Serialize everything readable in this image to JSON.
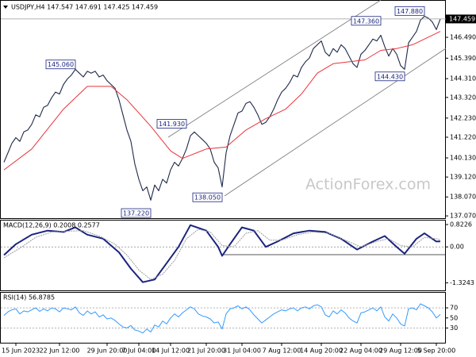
{
  "watermark": "ActionForex.com",
  "chart_data": [
    {
      "type": "line",
      "title": "USDJPY,H4 147.547 147.691 147.425 147.459",
      "xlim": [
        0,
        110
      ],
      "ylim": [
        136.95,
        148.25
      ],
      "yticks": [
        {
          "value": 146.49,
          "label": "146.490"
        },
        {
          "value": 145.39,
          "label": "145.390"
        },
        {
          "value": 144.31,
          "label": "144.310"
        },
        {
          "value": 143.32,
          "label": "143.320"
        },
        {
          "value": 142.23,
          "label": "142.230"
        },
        {
          "value": 141.22,
          "label": "141.220"
        },
        {
          "value": 140.13,
          "label": "140.130"
        },
        {
          "value": 139.12,
          "label": "139.120"
        },
        {
          "value": 138.07,
          "label": "138.070"
        },
        {
          "value": 137.07,
          "label": "137.070"
        }
      ],
      "last_price": 147.459,
      "series": [
        {
          "color": "#1e2a4a",
          "values": [
            139.9,
            140.4,
            140.9,
            141.2,
            141.0,
            141.5,
            141.6,
            141.9,
            142.4,
            142.3,
            142.8,
            142.9,
            143.3,
            143.6,
            143.5,
            144.0,
            144.3,
            144.5,
            144.8,
            144.6,
            144.4,
            144.7,
            144.6,
            144.7,
            144.4,
            144.5,
            144.2,
            144.0,
            143.8,
            143.2,
            142.4,
            141.6,
            141.0,
            139.8,
            139.0,
            138.4,
            138.6,
            137.9,
            138.7,
            138.4,
            139.0,
            138.8,
            139.5,
            139.9,
            139.7,
            140.1,
            140.6,
            141.3,
            141.5,
            141.3,
            141.1,
            140.9,
            140.6,
            139.9,
            139.6,
            138.6,
            140.4,
            141.3,
            141.9,
            142.5,
            142.6,
            143.0,
            143.1,
            142.8,
            142.4,
            141.9,
            142.0,
            142.3,
            142.7,
            143.2,
            143.6,
            143.8,
            144.1,
            144.5,
            144.4,
            144.9,
            145.2,
            145.4,
            145.9,
            146.1,
            146.3,
            145.7,
            145.5,
            145.9,
            145.7,
            146.1,
            145.9,
            145.5,
            145.1,
            144.9,
            145.6,
            145.8,
            146.1,
            146.4,
            146.3,
            146.6,
            146.0,
            145.5,
            145.9,
            145.6,
            145.0,
            144.8,
            146.2,
            146.5,
            146.8,
            147.4,
            147.6,
            147.5,
            147.3,
            146.9,
            147.459
          ]
        },
        {
          "color": "#e8333a",
          "x": [
            0,
            7,
            15,
            21,
            27,
            31,
            37,
            42,
            45,
            51,
            56,
            61,
            66,
            71,
            75,
            79,
            83,
            87,
            91,
            95,
            99,
            103,
            107,
            110
          ],
          "values": [
            139.5,
            140.6,
            142.7,
            143.9,
            143.9,
            143.2,
            141.8,
            140.5,
            140.1,
            140.6,
            140.7,
            141.6,
            142.2,
            142.7,
            143.5,
            144.6,
            145.1,
            145.2,
            145.3,
            145.8,
            145.9,
            146.1,
            146.5,
            146.8
          ]
        }
      ],
      "annotations": [
        {
          "label": "145.060",
          "value": 145.06,
          "x": 18
        },
        {
          "label": "141.930",
          "value": 141.93,
          "x": 46
        },
        {
          "label": "137.220",
          "value": 137.22,
          "x": 37
        },
        {
          "label": "138.050",
          "value": 138.05,
          "x": 55
        },
        {
          "label": "147.360",
          "value": 147.36,
          "x": 95
        },
        {
          "label": "144.430",
          "value": 144.43,
          "x": 101
        },
        {
          "label": "147.880",
          "value": 147.88,
          "x": 106
        }
      ]
    },
    {
      "type": "line",
      "title": "MACD(12,26,9) 0.2008 0.2577",
      "xlim": [
        0,
        110
      ],
      "ylim": [
        -1.6,
        0.97
      ],
      "yticks": [
        0.8226,
        {
          "value": 0,
          "label": "0.00"
        },
        -1.3243
      ],
      "levels": [
        0
      ],
      "series": [
        {
          "color": "#1a237e",
          "x": [
            0,
            3,
            7,
            11,
            15,
            18,
            21,
            25,
            29,
            32,
            35,
            38,
            41,
            44,
            47,
            51,
            54,
            55,
            57,
            60,
            63,
            66,
            69,
            73,
            77,
            81,
            85,
            89,
            93,
            96,
            99,
            101,
            104,
            106,
            109,
            110
          ],
          "values": [
            -0.3,
            0.1,
            0.45,
            0.6,
            0.55,
            0.72,
            0.45,
            0.3,
            -0.2,
            -0.8,
            -1.3,
            -1.2,
            -0.6,
            0.0,
            0.8,
            0.6,
            0.0,
            -0.33,
            0.1,
            0.72,
            0.6,
            0.0,
            0.2,
            0.5,
            0.6,
            0.55,
            0.3,
            -0.1,
            0.2,
            0.4,
            0.0,
            -0.25,
            0.3,
            0.5,
            0.2,
            0.2008
          ]
        },
        {
          "color": "#9a9a9a",
          "x": [
            0,
            4,
            8,
            12,
            16,
            20,
            24,
            28,
            31,
            34,
            37,
            40,
            43,
            46,
            49,
            52,
            55,
            58,
            61,
            64,
            67,
            70,
            74,
            78,
            82,
            86,
            90,
            94,
            97,
            100,
            103,
            106,
            109,
            110
          ],
          "values": [
            -0.4,
            -0.05,
            0.35,
            0.55,
            0.58,
            0.6,
            0.4,
            0.1,
            -0.3,
            -0.85,
            -1.2,
            -1.0,
            -0.5,
            0.3,
            0.65,
            0.55,
            0.05,
            0.0,
            0.5,
            0.6,
            0.25,
            0.25,
            0.45,
            0.55,
            0.5,
            0.25,
            0.0,
            0.2,
            0.3,
            0.05,
            0.0,
            0.35,
            0.3,
            0.2577
          ]
        }
      ]
    },
    {
      "type": "line",
      "title": "RSI(14) 56.8785",
      "xlim": [
        0,
        110
      ],
      "ylim": [
        0,
        100
      ],
      "yticks": [
        70,
        50,
        30
      ],
      "levels": [
        70,
        30
      ],
      "xticks": [
        {
          "value": 3,
          "label": "15 Jun 2023"
        },
        {
          "value": 14,
          "label": "22 Jun 12:00"
        },
        {
          "value": 26,
          "label": "29 Jun 20:00"
        },
        {
          "value": 34,
          "label": "7 Jul 04:00"
        },
        {
          "value": 42,
          "label": "14 Jul 12:00"
        },
        {
          "value": 51,
          "label": "21 Jul 20:00"
        },
        {
          "value": 60,
          "label": "31 Jul 04:00"
        },
        {
          "value": 70,
          "label": "7 Aug 12:00"
        },
        {
          "value": 80,
          "label": "14 Aug 20:00"
        },
        {
          "value": 90,
          "label": "22 Aug 04:00"
        },
        {
          "value": 100,
          "label": "29 Aug 12:00"
        },
        {
          "value": 109,
          "label": "5 Sep 20:00"
        }
      ],
      "series": [
        {
          "color": "#3399ff",
          "values": [
            55,
            62,
            66,
            68,
            58,
            64,
            62,
            66,
            70,
            63,
            68,
            64,
            70,
            68,
            62,
            70,
            68,
            66,
            72,
            60,
            55,
            64,
            58,
            62,
            52,
            56,
            48,
            50,
            45,
            38,
            32,
            30,
            35,
            26,
            24,
            20,
            28,
            22,
            36,
            32,
            44,
            38,
            50,
            58,
            52,
            60,
            66,
            72,
            68,
            58,
            54,
            52,
            48,
            40,
            42,
            28,
            58,
            68,
            70,
            74,
            68,
            72,
            66,
            56,
            48,
            40,
            46,
            52,
            58,
            62,
            66,
            64,
            68,
            70,
            64,
            70,
            72,
            68,
            74,
            76,
            72,
            56,
            52,
            64,
            58,
            66,
            60,
            50,
            44,
            40,
            60,
            62,
            66,
            70,
            64,
            72,
            52,
            44,
            58,
            50,
            38,
            34,
            68,
            70,
            66,
            78,
            74,
            70,
            62,
            50,
            56.8785
          ]
        }
      ]
    }
  ]
}
